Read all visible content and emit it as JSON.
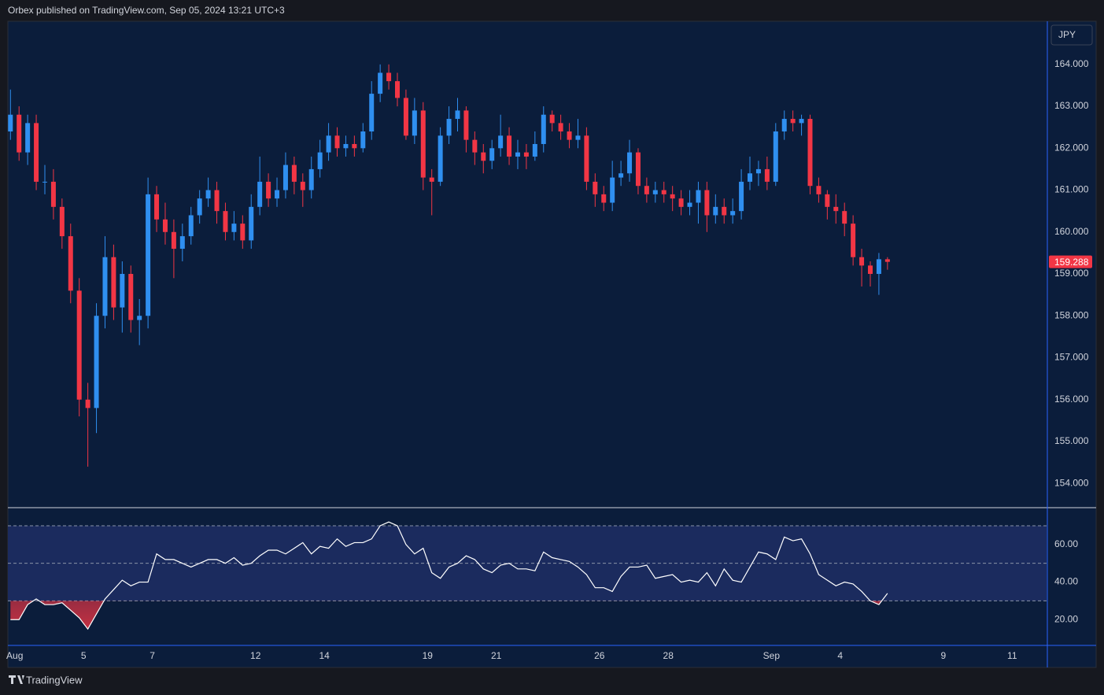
{
  "chart_data": [
    {
      "type": "candlestick",
      "title": "Orbex published on TradingView.com, Sep 05, 2024 13:21 UTC+3",
      "currency": "JPY",
      "up_color": "#2f8ff0",
      "down_color": "#f23645",
      "xlim": [
        -0.2,
        30
      ],
      "xticks": [
        {
          "value": 0,
          "label": "Aug"
        },
        {
          "value": 2,
          "label": "5"
        },
        {
          "value": 4,
          "label": "7"
        },
        {
          "value": 7,
          "label": "12"
        },
        {
          "value": 9,
          "label": "14"
        },
        {
          "value": 12,
          "label": "19"
        },
        {
          "value": 14,
          "label": "21"
        },
        {
          "value": 17,
          "label": "26"
        },
        {
          "value": 19,
          "label": "28"
        },
        {
          "value": 22,
          "label": "Sep"
        },
        {
          "value": 24,
          "label": "4"
        },
        {
          "value": 27,
          "label": "9"
        },
        {
          "value": 29,
          "label": "11"
        }
      ],
      "ylim": [
        153.44,
        165.03
      ],
      "yticks": [
        {
          "value": 154,
          "label": "154.000"
        },
        {
          "value": 155,
          "label": "155.000"
        },
        {
          "value": 156,
          "label": "156.000"
        },
        {
          "value": 157,
          "label": "157.000"
        },
        {
          "value": 158,
          "label": "158.000"
        },
        {
          "value": 159,
          "label": "159.000"
        },
        {
          "value": 160,
          "label": "160.000"
        },
        {
          "value": 161,
          "label": "161.000"
        },
        {
          "value": 162,
          "label": "162.000"
        },
        {
          "value": 163,
          "label": "163.000"
        },
        {
          "value": 164,
          "label": "164.000"
        }
      ],
      "x": [
        -0.125,
        0.125,
        0.375,
        0.625,
        0.875,
        1.125,
        1.375,
        1.625,
        1.875,
        2.125,
        2.375,
        2.625,
        2.875,
        3.125,
        3.375,
        3.625,
        3.875,
        4.125,
        4.375,
        4.625,
        4.875,
        5.125,
        5.375,
        5.625,
        5.875,
        6.125,
        6.375,
        6.625,
        6.875,
        7.125,
        7.375,
        7.625,
        7.875,
        8.125,
        8.375,
        8.625,
        8.875,
        9.125,
        9.375,
        9.625,
        9.875,
        10.125,
        10.375,
        10.625,
        10.875,
        11.125,
        11.375,
        11.625,
        11.875,
        12.125,
        12.375,
        12.625,
        12.875,
        13.125,
        13.375,
        13.625,
        13.875,
        14.125,
        14.375,
        14.625,
        14.875,
        15.125,
        15.375,
        15.625,
        15.875,
        16.125,
        16.375,
        16.625,
        16.875,
        17.125,
        17.375,
        17.625,
        17.875,
        18.125,
        18.375,
        18.625,
        18.875,
        19.125,
        19.375,
        19.625,
        19.875,
        20.125,
        20.375,
        20.625,
        20.875,
        21.125,
        21.375,
        21.625,
        21.875,
        22.125,
        22.375,
        22.625,
        22.875,
        23.125,
        23.375,
        23.625,
        23.875,
        24.125,
        24.375,
        24.625,
        24.875,
        25.125,
        25.375
      ],
      "open": [
        162.4,
        162.8,
        161.9,
        162.6,
        161.2,
        161.2,
        160.6,
        159.9,
        158.6,
        156.0,
        155.8,
        158.0,
        159.4,
        158.2,
        159.0,
        157.9,
        158.0,
        160.9,
        160.3,
        160.0,
        159.6,
        159.9,
        160.4,
        160.8,
        161.0,
        160.5,
        160.0,
        160.2,
        159.8,
        160.6,
        161.2,
        160.8,
        161.0,
        161.6,
        161.2,
        161.0,
        161.5,
        161.9,
        162.3,
        162.0,
        162.1,
        162.0,
        162.4,
        163.3,
        163.8,
        163.6,
        163.2,
        162.3,
        162.9,
        161.3,
        161.2,
        162.3,
        162.7,
        162.9,
        162.2,
        161.9,
        161.7,
        162.0,
        162.3,
        161.8,
        161.9,
        161.8,
        162.1,
        162.8,
        162.6,
        162.4,
        162.2,
        162.3,
        161.2,
        160.9,
        160.7,
        161.3,
        161.4,
        161.9,
        161.1,
        160.9,
        161.0,
        160.9,
        160.8,
        160.6,
        160.7,
        161.0,
        160.4,
        160.6,
        160.4,
        160.5,
        161.2,
        161.4,
        161.5,
        161.2,
        162.4,
        162.7,
        162.6,
        162.7,
        161.1,
        160.9,
        160.6,
        160.5,
        160.2,
        159.4,
        159.2,
        159.0,
        159.35
      ],
      "high": [
        163.4,
        163.0,
        162.8,
        162.8,
        161.6,
        161.5,
        160.8,
        160.2,
        158.9,
        156.4,
        158.3,
        159.9,
        159.7,
        159.3,
        159.2,
        158.4,
        161.3,
        161.1,
        160.7,
        160.3,
        160.2,
        160.6,
        161.0,
        161.3,
        161.2,
        160.7,
        160.5,
        160.4,
        160.9,
        161.8,
        161.4,
        161.3,
        161.9,
        161.8,
        161.4,
        161.8,
        162.2,
        162.6,
        162.5,
        162.3,
        162.3,
        162.6,
        163.6,
        164.0,
        164.0,
        163.8,
        163.4,
        163.2,
        163.1,
        161.5,
        162.5,
        163.0,
        163.2,
        163.0,
        162.4,
        162.1,
        162.2,
        162.8,
        162.5,
        162.2,
        162.1,
        162.4,
        163.0,
        162.9,
        162.8,
        162.6,
        162.7,
        162.5,
        161.4,
        161.1,
        161.7,
        161.7,
        162.2,
        162.0,
        161.3,
        161.2,
        161.2,
        161.1,
        161.0,
        161.0,
        161.2,
        161.2,
        160.9,
        160.8,
        160.8,
        161.5,
        161.8,
        161.7,
        161.8,
        162.6,
        162.9,
        162.9,
        162.8,
        162.8,
        161.3,
        161.0,
        160.9,
        160.7,
        160.4,
        159.6,
        159.3,
        159.5,
        159.4
      ],
      "low": [
        162.2,
        161.7,
        161.6,
        161.0,
        160.9,
        160.3,
        159.6,
        158.3,
        155.6,
        154.4,
        155.2,
        157.7,
        157.9,
        157.6,
        157.6,
        157.3,
        157.7,
        160.0,
        159.7,
        158.9,
        159.3,
        159.7,
        160.2,
        160.6,
        160.2,
        159.8,
        159.8,
        159.6,
        159.6,
        160.4,
        160.6,
        160.6,
        160.8,
        160.9,
        160.6,
        160.8,
        161.3,
        161.7,
        161.8,
        161.8,
        161.8,
        161.9,
        162.2,
        163.1,
        163.4,
        163.0,
        162.2,
        162.1,
        161.0,
        160.4,
        161.1,
        162.1,
        162.4,
        161.9,
        161.6,
        161.4,
        161.5,
        161.8,
        161.6,
        161.5,
        161.5,
        161.7,
        161.9,
        162.4,
        162.2,
        162.0,
        162.0,
        161.0,
        160.6,
        160.5,
        160.5,
        161.1,
        161.2,
        160.9,
        160.7,
        160.7,
        160.7,
        160.5,
        160.4,
        160.4,
        160.2,
        160.0,
        160.2,
        160.2,
        160.2,
        160.3,
        161.0,
        161.1,
        161.0,
        161.1,
        162.2,
        162.4,
        162.3,
        160.9,
        160.7,
        160.3,
        160.2,
        159.9,
        159.2,
        158.7,
        158.7,
        158.5,
        159.1
      ],
      "close": [
        162.8,
        161.9,
        162.6,
        161.2,
        161.2,
        160.6,
        159.9,
        158.6,
        156.0,
        155.8,
        158.0,
        159.4,
        158.2,
        159.0,
        157.9,
        158.0,
        160.9,
        160.3,
        160.0,
        159.6,
        159.9,
        160.4,
        160.8,
        161.0,
        160.5,
        160.0,
        160.2,
        159.8,
        160.6,
        161.2,
        160.8,
        161.0,
        161.6,
        161.2,
        161.0,
        161.5,
        161.9,
        162.3,
        162.0,
        162.1,
        162.0,
        162.4,
        163.3,
        163.8,
        163.6,
        163.2,
        162.3,
        162.9,
        161.3,
        161.2,
        162.3,
        162.7,
        162.9,
        162.2,
        161.9,
        161.7,
        162.0,
        162.3,
        161.8,
        161.9,
        161.8,
        162.1,
        162.8,
        162.6,
        162.4,
        162.2,
        162.3,
        161.2,
        160.9,
        160.7,
        161.3,
        161.4,
        161.9,
        161.1,
        160.9,
        161.0,
        160.9,
        160.8,
        160.6,
        160.7,
        161.0,
        160.4,
        160.6,
        160.4,
        160.5,
        161.2,
        161.4,
        161.5,
        161.2,
        162.4,
        162.7,
        162.6,
        162.7,
        161.1,
        160.9,
        160.6,
        160.5,
        160.2,
        159.4,
        159.2,
        159.0,
        159.35,
        159.288
      ]
    },
    {
      "type": "line",
      "color": "#ffffff",
      "band_color": "#1b2b5e",
      "oversold_color": "#f23645",
      "xlim": [
        -0.2,
        30
      ],
      "ylim": [
        6.7,
        79.2
      ],
      "yticks": [
        {
          "value": 20,
          "label": "20.00"
        },
        {
          "value": 40,
          "label": "40.00"
        },
        {
          "value": 60,
          "label": "60.00"
        }
      ],
      "levels": [
        70,
        50,
        30
      ],
      "x": [
        -0.125,
        0.125,
        0.375,
        0.625,
        0.875,
        1.125,
        1.375,
        1.625,
        1.875,
        2.125,
        2.375,
        2.625,
        2.875,
        3.125,
        3.375,
        3.625,
        3.875,
        4.125,
        4.375,
        4.625,
        4.875,
        5.125,
        5.375,
        5.625,
        5.875,
        6.125,
        6.375,
        6.625,
        6.875,
        7.125,
        7.375,
        7.625,
        7.875,
        8.125,
        8.375,
        8.625,
        8.875,
        9.125,
        9.375,
        9.625,
        9.875,
        10.125,
        10.375,
        10.625,
        10.875,
        11.125,
        11.375,
        11.625,
        11.875,
        12.125,
        12.375,
        12.625,
        12.875,
        13.125,
        13.375,
        13.625,
        13.875,
        14.125,
        14.375,
        14.625,
        14.875,
        15.125,
        15.375,
        15.625,
        15.875,
        16.125,
        16.375,
        16.625,
        16.875,
        17.125,
        17.375,
        17.625,
        17.875,
        18.125,
        18.375,
        18.625,
        18.875,
        19.125,
        19.375,
        19.625,
        19.875,
        20.125,
        20.375,
        20.625,
        20.875,
        21.125,
        21.375,
        21.625,
        21.875,
        22.125,
        22.375,
        22.625,
        22.875,
        23.125,
        23.375,
        23.625,
        23.875,
        24.125,
        24.375,
        24.625,
        24.875,
        25.125,
        25.375
      ],
      "values": [
        20,
        20,
        28,
        31,
        28,
        28,
        29,
        25,
        21,
        15,
        23,
        31,
        36,
        41,
        38,
        40,
        40,
        55,
        52,
        52,
        50,
        48,
        50,
        52,
        52,
        50,
        53,
        49,
        50,
        54,
        57,
        57,
        55,
        58,
        61,
        55,
        59,
        58,
        63,
        59,
        61,
        61,
        63,
        70,
        72,
        70,
        60,
        55,
        58,
        45,
        42,
        48,
        50,
        54,
        52,
        47,
        45,
        49,
        50,
        47,
        47,
        46,
        56,
        53,
        52,
        51,
        48,
        44,
        37,
        37,
        35,
        43,
        48,
        48,
        49,
        42,
        43,
        44,
        40,
        41,
        40,
        45,
        38,
        47,
        41,
        40,
        48,
        56,
        55,
        52,
        64,
        62,
        63,
        55,
        44,
        41,
        38,
        40,
        39,
        35,
        30,
        28,
        34
      ]
    }
  ],
  "branding": "TradingView"
}
